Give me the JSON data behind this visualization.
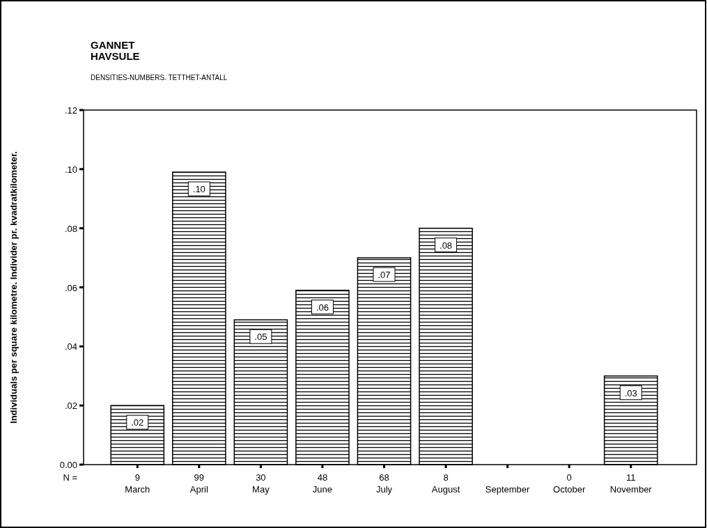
{
  "chart_data": {
    "type": "bar",
    "title": "GANNET\nHAVSULE",
    "subtitle": "DENSITIES-NUMBERS. TETTHET-ANTALL",
    "ylabel": "Individuals per square kilometre. Individer pr. kvadratkilometer.",
    "categories": [
      "9\nMarch",
      "99\nApril",
      "30\nMay",
      "48\nJune",
      "68\nJuly",
      "8\nAugust",
      "September",
      "0\nOctober",
      "11\nNovember"
    ],
    "values": [
      0.02,
      0.099,
      0.049,
      0.059,
      0.07,
      0.08,
      null,
      0,
      0.03
    ],
    "value_labels": [
      ".02",
      ".10",
      ".05",
      ".06",
      ".07",
      ".08",
      null,
      null,
      ".03"
    ],
    "color": "#000000",
    "ylim": [
      0,
      0.12
    ],
    "yticks": [
      {
        "value": 0,
        "label": "0.00"
      },
      {
        "value": 0.02,
        "label": ".02"
      },
      {
        "value": 0.04,
        "label": ".04"
      },
      {
        "value": 0.06,
        "label": ".06"
      },
      {
        "value": 0.08,
        "label": ".08"
      },
      {
        "value": 0.1,
        "label": ".10"
      },
      {
        "value": 0.12,
        "label": ".12"
      }
    ],
    "annotations": [
      "N ="
    ],
    "grid": false
  }
}
